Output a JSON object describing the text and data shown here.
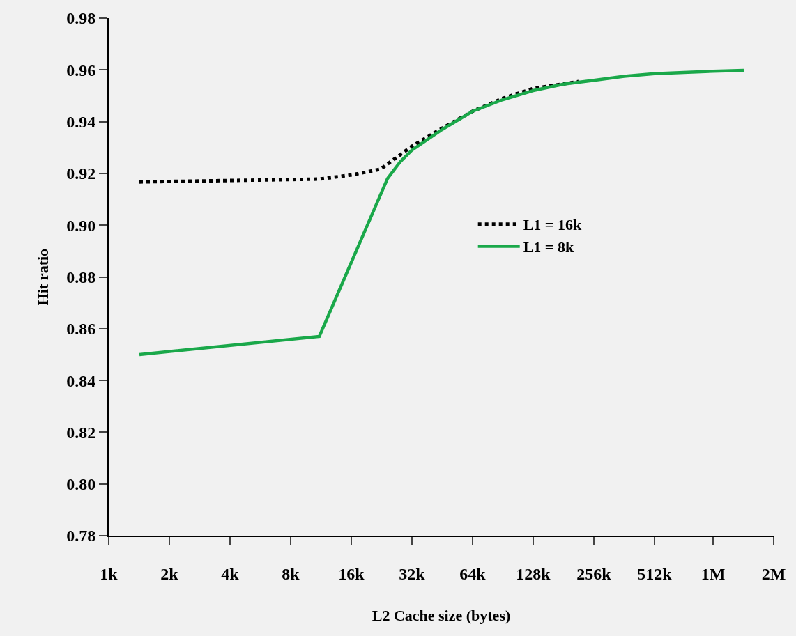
{
  "chart_data": {
    "type": "line",
    "xlabel": "L2 Cache size (bytes)",
    "ylabel": "Hit ratio",
    "log": "x",
    "grid": false,
    "legend": "center",
    "marker": "none",
    "xlim": [
      1000,
      2000000
    ],
    "xticks": [
      {
        "value": 1000,
        "label": "1k"
      },
      {
        "value": 2000,
        "label": "2k"
      },
      {
        "value": 4000,
        "label": "4k"
      },
      {
        "value": 8000,
        "label": "8k"
      },
      {
        "value": 16000,
        "label": "16k"
      },
      {
        "value": 32000,
        "label": "32k"
      },
      {
        "value": 64000,
        "label": "64k"
      },
      {
        "value": 128000,
        "label": "128k"
      },
      {
        "value": 256000,
        "label": "256k"
      },
      {
        "value": 512000,
        "label": "512k"
      },
      {
        "value": 1000000,
        "label": "1M"
      },
      {
        "value": 2000000,
        "label": "2M"
      }
    ],
    "ylim": [
      0.78,
      0.98
    ],
    "yticks": [
      {
        "value": 0.78,
        "label": "0.78"
      },
      {
        "value": 0.8,
        "label": "0.80"
      },
      {
        "value": 0.82,
        "label": "0.82"
      },
      {
        "value": 0.84,
        "label": "0.84"
      },
      {
        "value": 0.86,
        "label": "0.86"
      },
      {
        "value": 0.88,
        "label": "0.88"
      },
      {
        "value": 0.9,
        "label": "0.90"
      },
      {
        "value": 0.92,
        "label": "0.92"
      },
      {
        "value": 0.94,
        "label": "0.94"
      },
      {
        "value": 0.96,
        "label": "0.96"
      },
      {
        "value": 0.98,
        "label": "0.98"
      }
    ],
    "series": [
      {
        "name": "L1 = 16k",
        "color": "#000000",
        "line_style": "dotted",
        "x": [
          1420,
          11100,
          16000,
          22300,
          32000,
          45300,
          64000,
          90500,
          128000,
          215000
        ],
        "values": [
          0.9167,
          0.9178,
          0.9194,
          0.9216,
          0.9305,
          0.9375,
          0.944,
          0.949,
          0.9528,
          0.9555
        ]
      },
      {
        "name": "L1 = 8k",
        "color": "#1aa84a",
        "line_style": "solid",
        "x": [
          1420,
          11100,
          24200,
          28000,
          32000,
          45300,
          64000,
          90500,
          128000,
          181000,
          256000,
          362000,
          512000,
          715000,
          1000000,
          1420000
        ],
        "values": [
          0.85,
          0.857,
          0.918,
          0.9245,
          0.929,
          0.937,
          0.944,
          0.9485,
          0.952,
          0.9545,
          0.956,
          0.9575,
          0.9585,
          0.959,
          0.9595,
          0.9598
        ]
      }
    ]
  }
}
